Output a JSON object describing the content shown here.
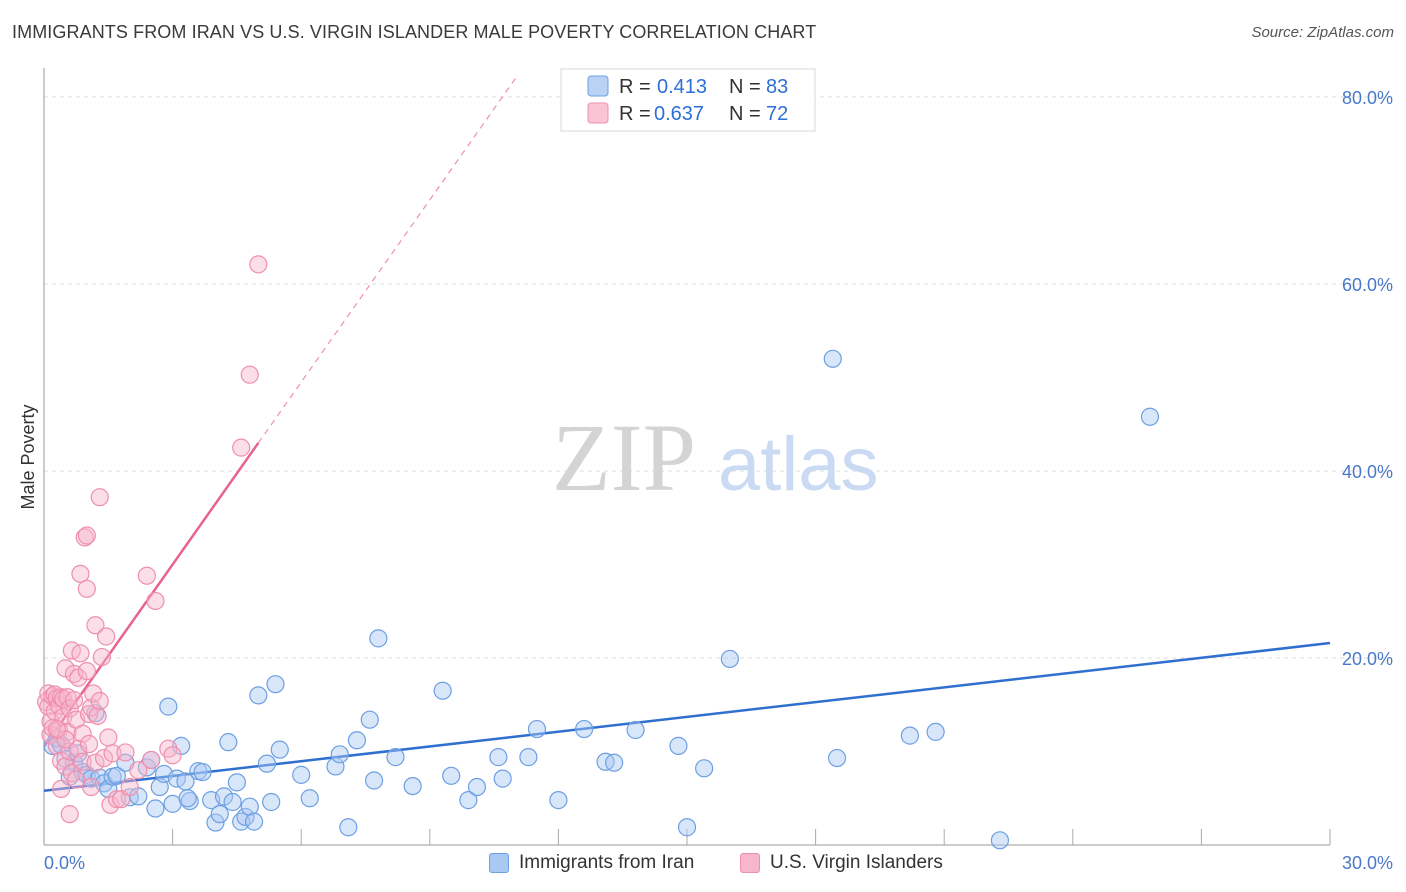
{
  "header": {
    "title": "IMMIGRANTS FROM IRAN VS U.S. VIRGIN ISLANDER MALE POVERTY CORRELATION CHART",
    "source": "Source: ZipAtlas.com"
  },
  "watermark": {
    "zip": "ZIP",
    "atlas": "atlas"
  },
  "colors": {
    "blue_fill": "#a9c8f2",
    "blue_stroke": "#6d9fe3",
    "blue_line": "#2f6fd0",
    "pink_fill": "#f7b6cb",
    "pink_stroke": "#ef8fae",
    "pink_line": "#e8638e",
    "tick_text": "#4a78c8",
    "grid": "#dddddd"
  },
  "legend": {
    "rows": [
      {
        "r_label": "R =",
        "r_value": "0.413",
        "n_label": "N =",
        "n_value": "83"
      },
      {
        "r_label": "R =",
        "r_value": "0.637",
        "n_label": "N =",
        "n_value": "72"
      }
    ]
  },
  "chart_data": {
    "type": "scatter",
    "title": "IMMIGRANTS FROM IRAN VS U.S. VIRGIN ISLANDER MALE POVERTY CORRELATION CHART",
    "xlabel": "",
    "ylabel": "Male Poverty",
    "xlim": [
      0,
      30
    ],
    "ylim": [
      0,
      80
    ],
    "x_tick_labels": [
      {
        "value": 0,
        "label": "0.0%"
      },
      {
        "value": 30,
        "label": "30.0%"
      }
    ],
    "y_tick_labels": [
      {
        "value": 20,
        "label": "20.0%"
      },
      {
        "value": 40,
        "label": "40.0%"
      },
      {
        "value": 60,
        "label": "60.0%"
      },
      {
        "value": 80,
        "label": "80.0%"
      }
    ],
    "grid": true,
    "legend_position": "top-center",
    "series": [
      {
        "name": "Immigrants from Iran",
        "color": "#a9c8f2",
        "r": 0.413,
        "n": 83,
        "trend": {
          "x": [
            0,
            30
          ],
          "y": [
            5.8,
            21.6
          ]
        },
        "points": [
          [
            0.2,
            10.6
          ],
          [
            0.3,
            11.4
          ],
          [
            0.4,
            10.7
          ],
          [
            0.5,
            9.2
          ],
          [
            0.6,
            7.3
          ],
          [
            0.7,
            8.8
          ],
          [
            0.8,
            9.8
          ],
          [
            0.9,
            7.8
          ],
          [
            1.0,
            7.5
          ],
          [
            1.1,
            7.1
          ],
          [
            1.2,
            14.1
          ],
          [
            1.3,
            7.2
          ],
          [
            1.4,
            6.6
          ],
          [
            1.5,
            6.0
          ],
          [
            1.6,
            7.3
          ],
          [
            1.7,
            7.4
          ],
          [
            1.9,
            8.8
          ],
          [
            2.0,
            5.1
          ],
          [
            2.2,
            5.2
          ],
          [
            2.4,
            8.3
          ],
          [
            2.5,
            9.1
          ],
          [
            2.6,
            3.9
          ],
          [
            2.7,
            6.2
          ],
          [
            2.8,
            7.6
          ],
          [
            2.9,
            14.8
          ],
          [
            3.0,
            4.4
          ],
          [
            3.1,
            7.1
          ],
          [
            3.2,
            10.6
          ],
          [
            3.3,
            6.8
          ],
          [
            3.4,
            4.7
          ],
          [
            3.6,
            7.9
          ],
          [
            3.7,
            7.8
          ],
          [
            3.9,
            4.8
          ],
          [
            4.0,
            2.4
          ],
          [
            4.1,
            3.3
          ],
          [
            4.2,
            5.2
          ],
          [
            4.3,
            11.0
          ],
          [
            4.4,
            4.6
          ],
          [
            4.5,
            6.7
          ],
          [
            4.6,
            2.5
          ],
          [
            4.7,
            3.0
          ],
          [
            4.8,
            4.1
          ],
          [
            4.9,
            2.5
          ],
          [
            5.0,
            16.0
          ],
          [
            5.2,
            8.7
          ],
          [
            5.3,
            4.6
          ],
          [
            5.4,
            17.2
          ],
          [
            5.5,
            10.2
          ],
          [
            6.2,
            5.0
          ],
          [
            6.8,
            8.4
          ],
          [
            6.9,
            9.7
          ],
          [
            7.1,
            1.9
          ],
          [
            7.3,
            11.2
          ],
          [
            7.6,
            13.4
          ],
          [
            7.7,
            6.9
          ],
          [
            7.8,
            22.1
          ],
          [
            8.2,
            9.4
          ],
          [
            8.6,
            6.3
          ],
          [
            9.3,
            16.5
          ],
          [
            9.5,
            7.4
          ],
          [
            9.9,
            4.8
          ],
          [
            10.1,
            6.2
          ],
          [
            10.6,
            9.4
          ],
          [
            10.7,
            7.1
          ],
          [
            11.3,
            9.4
          ],
          [
            11.5,
            12.4
          ],
          [
            12.0,
            4.8
          ],
          [
            12.6,
            12.4
          ],
          [
            13.1,
            8.9
          ],
          [
            13.3,
            8.8
          ],
          [
            13.8,
            12.3
          ],
          [
            14.8,
            10.6
          ],
          [
            15.0,
            1.9
          ],
          [
            15.4,
            8.2
          ],
          [
            16.0,
            19.9
          ],
          [
            18.4,
            52.0
          ],
          [
            18.5,
            9.3
          ],
          [
            20.2,
            11.7
          ],
          [
            20.8,
            12.1
          ],
          [
            22.3,
            0.5
          ],
          [
            25.8,
            45.8
          ],
          [
            3.35,
            5.0
          ],
          [
            6.0,
            7.5
          ]
        ]
      },
      {
        "name": "U.S. Virgin Islanders",
        "color": "#f7b6cb",
        "r": 0.637,
        "n": 72,
        "trend": {
          "x": [
            0,
            5.0
          ],
          "y": [
            10.5,
            43.0
          ]
        },
        "trend_extension": {
          "x": [
            5.0,
            11.0
          ],
          "y": [
            43.0,
            82.0
          ]
        },
        "points": [
          [
            0.05,
            15.3
          ],
          [
            0.1,
            14.8
          ],
          [
            0.1,
            16.2
          ],
          [
            0.15,
            13.2
          ],
          [
            0.15,
            11.8
          ],
          [
            0.2,
            15.9
          ],
          [
            0.2,
            12.5
          ],
          [
            0.25,
            16.1
          ],
          [
            0.25,
            14.3
          ],
          [
            0.3,
            10.6
          ],
          [
            0.3,
            15.7
          ],
          [
            0.35,
            12.3
          ],
          [
            0.35,
            14.9
          ],
          [
            0.4,
            15.8
          ],
          [
            0.4,
            9.0
          ],
          [
            0.45,
            13.7
          ],
          [
            0.45,
            15.6
          ],
          [
            0.5,
            8.4
          ],
          [
            0.5,
            18.9
          ],
          [
            0.55,
            15.8
          ],
          [
            0.55,
            12.1
          ],
          [
            0.6,
            14.6
          ],
          [
            0.6,
            10.0
          ],
          [
            0.65,
            20.8
          ],
          [
            0.65,
            7.7
          ],
          [
            0.7,
            15.5
          ],
          [
            0.7,
            18.3
          ],
          [
            0.75,
            13.4
          ],
          [
            0.75,
            7.0
          ],
          [
            0.8,
            17.9
          ],
          [
            0.8,
            10.3
          ],
          [
            0.85,
            29.0
          ],
          [
            0.85,
            20.5
          ],
          [
            0.9,
            8.9
          ],
          [
            0.9,
            11.9
          ],
          [
            0.95,
            32.9
          ],
          [
            1.0,
            27.4
          ],
          [
            1.0,
            18.6
          ],
          [
            1.05,
            14.0
          ],
          [
            1.05,
            10.8
          ],
          [
            1.1,
            14.7
          ],
          [
            1.15,
            16.2
          ],
          [
            1.2,
            23.5
          ],
          [
            1.2,
            8.8
          ],
          [
            1.25,
            13.8
          ],
          [
            1.3,
            15.4
          ],
          [
            1.3,
            37.2
          ],
          [
            1.35,
            20.1
          ],
          [
            1.4,
            9.3
          ],
          [
            1.45,
            22.3
          ],
          [
            1.5,
            11.5
          ],
          [
            1.55,
            4.3
          ],
          [
            1.6,
            9.8
          ],
          [
            1.7,
            4.9
          ],
          [
            1.8,
            4.9
          ],
          [
            1.9,
            9.9
          ],
          [
            2.0,
            6.2
          ],
          [
            2.2,
            8.0
          ],
          [
            2.4,
            28.8
          ],
          [
            2.5,
            9.1
          ],
          [
            2.6,
            26.1
          ],
          [
            2.9,
            10.3
          ],
          [
            3.0,
            9.6
          ],
          [
            4.6,
            42.5
          ],
          [
            4.8,
            50.3
          ],
          [
            5.0,
            62.1
          ],
          [
            0.6,
            3.3
          ],
          [
            0.5,
            11.3
          ],
          [
            1.0,
            33.1
          ],
          [
            1.1,
            6.2
          ],
          [
            0.3,
            12.4
          ],
          [
            0.4,
            6.0
          ]
        ]
      }
    ]
  }
}
